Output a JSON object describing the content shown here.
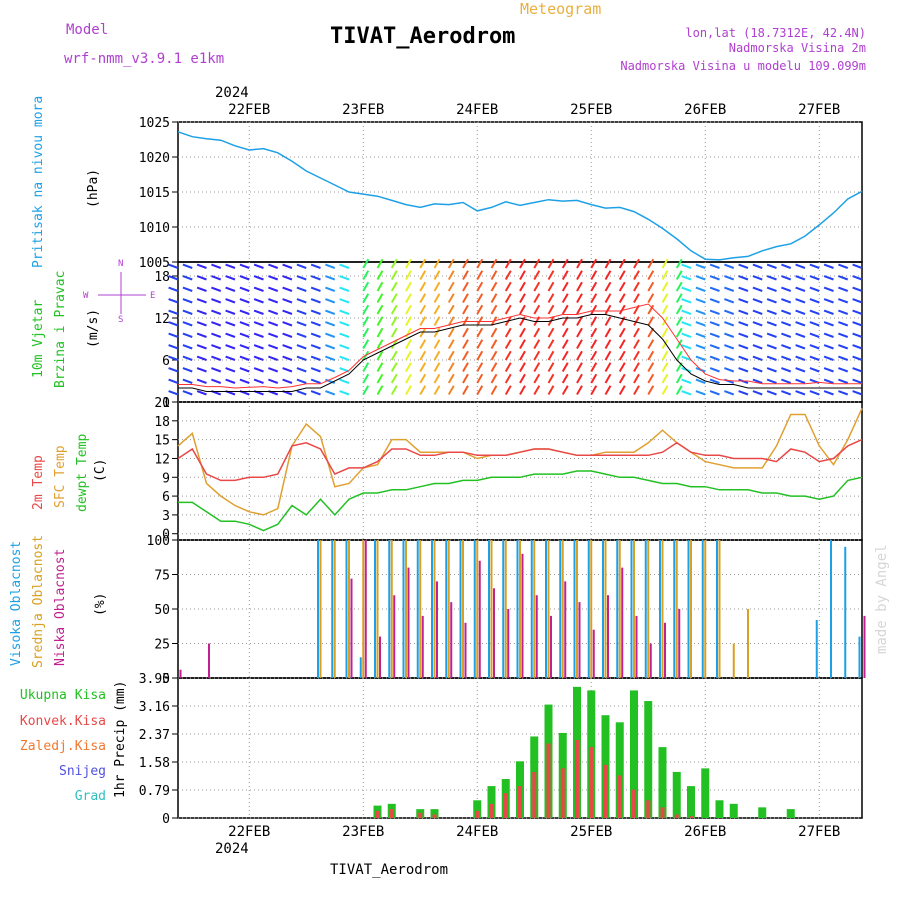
{
  "header": {
    "model_label": "Model",
    "model_name": "wrf-nmm_v3.9.1 e1km",
    "subtitle": "Meteogram",
    "station": "TIVAT_Aerodrom",
    "lonlat": "lon,lat (18.7312E, 42.4N)",
    "elevation": "Nadmorska Visina 2m",
    "model_elevation": "Nadmorska Visina u modelu 109.099m",
    "watermark": "made by Angel",
    "footer_station": "TIVAT_Aerodrom"
  },
  "time_axis": {
    "year": "2024",
    "start_hour": 0,
    "end_hour": 144,
    "day_labels": [
      {
        "label": "22FEB",
        "hour": 15
      },
      {
        "label": "23FEB",
        "hour": 39
      },
      {
        "label": "24FEB",
        "hour": 63
      },
      {
        "label": "25FEB",
        "hour": 87
      },
      {
        "label": "26FEB",
        "hour": 111
      },
      {
        "label": "27FEB",
        "hour": 135
      }
    ]
  },
  "colors": {
    "pressure": "#1ea0e6",
    "wind_speed": "#000000",
    "wind_gust": "#ff3030",
    "temp2m": "#e84848",
    "sfc_temp": "#e0a030",
    "dewpoint": "#22c022",
    "cloud_high": "#1ea0e6",
    "cloud_mid": "#d8a020",
    "cloud_low": "#c02090",
    "precip_total": "#22c022",
    "precip_conv": "#e84848",
    "label_purple": "#b040d0",
    "label_orange": "#e8b040",
    "pressure_label": "#1ea0e6"
  },
  "chart_data": [
    {
      "type": "line",
      "name": "pressure",
      "ylabel": "Pritisak na nivou mora",
      "unit": "(hPa)",
      "ylim": [
        1005,
        1025
      ],
      "yticks": [
        "1005",
        "1010",
        "1015",
        "1020",
        "1025"
      ],
      "grid": true,
      "x_hours": [
        0,
        3,
        6,
        9,
        12,
        15,
        18,
        21,
        24,
        27,
        30,
        33,
        36,
        39,
        42,
        45,
        48,
        51,
        54,
        57,
        60,
        63,
        66,
        69,
        72,
        75,
        78,
        81,
        84,
        87,
        90,
        93,
        96,
        99,
        102,
        105,
        108,
        111,
        114,
        117,
        120,
        123,
        126,
        129,
        132,
        135,
        138,
        141,
        144
      ],
      "values": [
        1023.6,
        1022.9,
        1022.6,
        1022.4,
        1021.6,
        1021.0,
        1021.2,
        1020.6,
        1019.4,
        1018.0,
        1017.0,
        1016.0,
        1015.0,
        1014.7,
        1014.4,
        1013.8,
        1013.2,
        1012.8,
        1013.3,
        1013.2,
        1013.5,
        1012.3,
        1012.8,
        1013.6,
        1013.1,
        1013.5,
        1013.9,
        1013.7,
        1013.8,
        1013.2,
        1012.7,
        1012.8,
        1012.2,
        1011.1,
        1009.8,
        1008.3,
        1006.6,
        1005.4,
        1005.3,
        1005.6,
        1005.8,
        1006.6,
        1007.2,
        1007.6,
        1008.7,
        1010.3,
        1012.0,
        1014.0,
        1015.1
      ]
    },
    {
      "type": "line",
      "name": "wind",
      "ylabel": "10m Vjetar Brzina i Pravac",
      "unit": "(m/s)",
      "ylim": [
        0,
        20
      ],
      "yticks": [
        "0",
        "6",
        "12",
        "18"
      ],
      "grid": true,
      "direction_legend": [
        "N",
        "S",
        "E",
        "W"
      ],
      "x_hours": [
        0,
        3,
        6,
        9,
        12,
        15,
        18,
        21,
        24,
        27,
        30,
        33,
        36,
        39,
        42,
        45,
        48,
        51,
        54,
        57,
        60,
        63,
        66,
        69,
        72,
        75,
        78,
        81,
        84,
        87,
        90,
        93,
        96,
        99,
        102,
        105,
        108,
        111,
        114,
        117,
        120,
        123,
        126,
        129,
        132,
        135,
        138,
        141,
        144
      ],
      "series": [
        {
          "values": [
            2,
            2,
            1.5,
            1.5,
            1.5,
            1.5,
            1.5,
            1.5,
            1.5,
            2,
            2,
            3,
            4,
            6,
            7,
            8,
            9,
            10,
            10,
            10.5,
            11,
            11,
            11,
            11.5,
            12,
            11.5,
            11.5,
            12,
            12,
            12.5,
            12.5,
            12,
            11.5,
            11,
            9,
            6,
            4,
            3,
            2.5,
            2.5,
            2,
            2,
            2,
            2,
            2,
            2,
            2,
            2,
            2
          ]
        },
        {
          "values": [
            2.5,
            2.5,
            2.2,
            2.2,
            2.0,
            2.1,
            2.2,
            2.0,
            2.2,
            2.6,
            2.6,
            3.5,
            4.5,
            6.5,
            7.5,
            8.5,
            9.5,
            10.5,
            10.5,
            11,
            11.5,
            11.5,
            11.5,
            12,
            12.5,
            12,
            12,
            12.5,
            12.5,
            13,
            13,
            13,
            13.5,
            14,
            12,
            9,
            6,
            4,
            3.2,
            3,
            3,
            2.6,
            2.6,
            2.6,
            2.6,
            2.8,
            2.6,
            2.6,
            2.6
          ]
        }
      ]
    },
    {
      "type": "line",
      "name": "temperature",
      "ylabel": [
        "2m Temp",
        "SFC Temp",
        "dewpt Temp"
      ],
      "unit": "(C)",
      "ylim": [
        -1,
        21
      ],
      "yticks": [
        "0",
        "3",
        "6",
        "9",
        "12",
        "15",
        "18",
        "21"
      ],
      "grid": true,
      "x_hours": [
        0,
        3,
        6,
        9,
        12,
        15,
        18,
        21,
        24,
        27,
        30,
        33,
        36,
        39,
        42,
        45,
        48,
        51,
        54,
        57,
        60,
        63,
        66,
        69,
        72,
        75,
        78,
        81,
        84,
        87,
        90,
        93,
        96,
        99,
        102,
        105,
        108,
        111,
        114,
        117,
        120,
        123,
        126,
        129,
        132,
        135,
        138,
        141,
        144
      ],
      "series": [
        {
          "values": [
            12,
            13.5,
            9.5,
            8.5,
            8.5,
            9,
            9,
            9.5,
            14,
            14.5,
            13.5,
            9.5,
            10.5,
            10.5,
            11.5,
            13.5,
            13.5,
            12.5,
            12.5,
            13,
            13,
            12.5,
            12.5,
            12.5,
            13,
            13.5,
            13.5,
            13,
            12.5,
            12.5,
            12.5,
            12.5,
            12.5,
            12.5,
            13,
            14.5,
            13,
            12.5,
            12.5,
            12,
            12,
            12,
            11.5,
            13.5,
            13,
            11.5,
            12,
            14,
            15
          ]
        },
        {
          "values": [
            14,
            16,
            8,
            6,
            4.5,
            3.5,
            3,
            4,
            14,
            17.5,
            15.5,
            7.5,
            8,
            10.5,
            11,
            15,
            15,
            13,
            13,
            13,
            13,
            12,
            12.5,
            12.5,
            13,
            13.5,
            13.5,
            13,
            12.5,
            12.5,
            13,
            13,
            13,
            14.5,
            16.5,
            14.5,
            13,
            11.5,
            11,
            10.5,
            10.5,
            10.5,
            14,
            19,
            19,
            14,
            11,
            15,
            20
          ]
        },
        {
          "values": [
            5,
            5,
            3.5,
            2,
            2,
            1.5,
            0.5,
            1.5,
            4.5,
            3,
            5.5,
            3,
            5.5,
            6.5,
            6.5,
            7,
            7,
            7.5,
            8,
            8,
            8.5,
            8.5,
            9,
            9,
            9,
            9.5,
            9.5,
            9.5,
            10,
            10,
            9.5,
            9,
            9,
            8.5,
            8,
            8,
            7.5,
            7.5,
            7,
            7,
            7,
            6.5,
            6.5,
            6,
            6,
            5.5,
            6,
            8.5,
            9
          ]
        }
      ]
    },
    {
      "type": "bar",
      "name": "clouds",
      "ylabel": [
        "Visoka Oblacnost",
        "Srednja Oblacnost",
        "Niska Oblacnost"
      ],
      "unit": "(%)",
      "ylim": [
        0,
        100
      ],
      "yticks": [
        "0",
        "25",
        "50",
        "75",
        "100"
      ],
      "grid": true,
      "x_hours": [
        0,
        3,
        6,
        9,
        12,
        15,
        18,
        21,
        24,
        27,
        30,
        33,
        36,
        39,
        42,
        45,
        48,
        51,
        54,
        57,
        60,
        63,
        66,
        69,
        72,
        75,
        78,
        81,
        84,
        87,
        90,
        93,
        96,
        99,
        102,
        105,
        108,
        111,
        114,
        117,
        120,
        123,
        126,
        129,
        132,
        135,
        138,
        141,
        144
      ],
      "series": [
        {
          "values": [
            0,
            0,
            0,
            0,
            0,
            0,
            0,
            0,
            0,
            0,
            100,
            100,
            100,
            15,
            100,
            100,
            100,
            100,
            100,
            100,
            100,
            100,
            100,
            100,
            100,
            100,
            100,
            100,
            100,
            100,
            100,
            100,
            100,
            100,
            100,
            100,
            100,
            100,
            100,
            0,
            0,
            0,
            0,
            0,
            0,
            42,
            100,
            95,
            30
          ]
        },
        {
          "values": [
            0,
            0,
            0,
            0,
            0,
            0,
            0,
            0,
            0,
            0,
            100,
            100,
            100,
            100,
            100,
            100,
            100,
            100,
            100,
            100,
            100,
            100,
            100,
            100,
            100,
            100,
            100,
            100,
            100,
            100,
            100,
            100,
            100,
            100,
            100,
            100,
            100,
            100,
            100,
            25,
            50,
            0,
            0,
            0,
            0,
            0,
            0,
            0,
            0
          ]
        },
        {
          "values": [
            6,
            0,
            25,
            0,
            0,
            0,
            0,
            0,
            0,
            0,
            0,
            0,
            72,
            100,
            30,
            60,
            80,
            45,
            70,
            55,
            40,
            85,
            65,
            50,
            90,
            60,
            45,
            70,
            55,
            35,
            60,
            80,
            45,
            25,
            40,
            50,
            0,
            0,
            0,
            0,
            0,
            0,
            0,
            0,
            0,
            0,
            0,
            0,
            45
          ]
        }
      ]
    },
    {
      "type": "bar",
      "name": "precip",
      "ylabel": "1hr Precip (mm)",
      "legend": [
        "Ukupna Kisa",
        "Konvek.Kisa",
        "Zaledj.Kisa",
        "Snijeg",
        "Grad"
      ],
      "ylim": [
        0,
        3.95
      ],
      "yticks": [
        "0",
        "0.79",
        "1.58",
        "2.37",
        "3.16",
        "3.95"
      ],
      "grid": true,
      "x_hours": [
        0,
        3,
        6,
        9,
        12,
        15,
        18,
        21,
        24,
        27,
        30,
        33,
        36,
        39,
        42,
        45,
        48,
        51,
        54,
        57,
        60,
        63,
        66,
        69,
        72,
        75,
        78,
        81,
        84,
        87,
        90,
        93,
        96,
        99,
        102,
        105,
        108,
        111,
        114,
        117,
        120,
        123,
        126,
        129,
        132,
        135,
        138,
        141,
        144
      ],
      "series": [
        {
          "values": [
            0,
            0,
            0,
            0,
            0,
            0,
            0,
            0,
            0,
            0,
            0,
            0,
            0,
            0,
            0.35,
            0.4,
            0,
            0.25,
            0.25,
            0,
            0,
            0.5,
            0.9,
            1.1,
            1.6,
            2.3,
            3.2,
            2.4,
            3.7,
            3.6,
            2.9,
            2.7,
            3.6,
            3.3,
            2.0,
            1.3,
            0.9,
            1.4,
            0.5,
            0.4,
            0,
            0.3,
            0,
            0.25,
            0,
            0,
            0,
            0,
            0
          ]
        },
        {
          "values": [
            0,
            0,
            0,
            0,
            0,
            0,
            0,
            0,
            0,
            0,
            0,
            0,
            0,
            0,
            0.2,
            0.25,
            0,
            0.15,
            0.1,
            0,
            0,
            0.2,
            0.4,
            0.7,
            0.9,
            1.3,
            2.1,
            1.4,
            2.2,
            2.0,
            1.5,
            1.2,
            0.8,
            0.5,
            0.3,
            0.1,
            0.05,
            0,
            0,
            0,
            0,
            0,
            0,
            0,
            0,
            0,
            0,
            0,
            0
          ]
        }
      ]
    }
  ]
}
